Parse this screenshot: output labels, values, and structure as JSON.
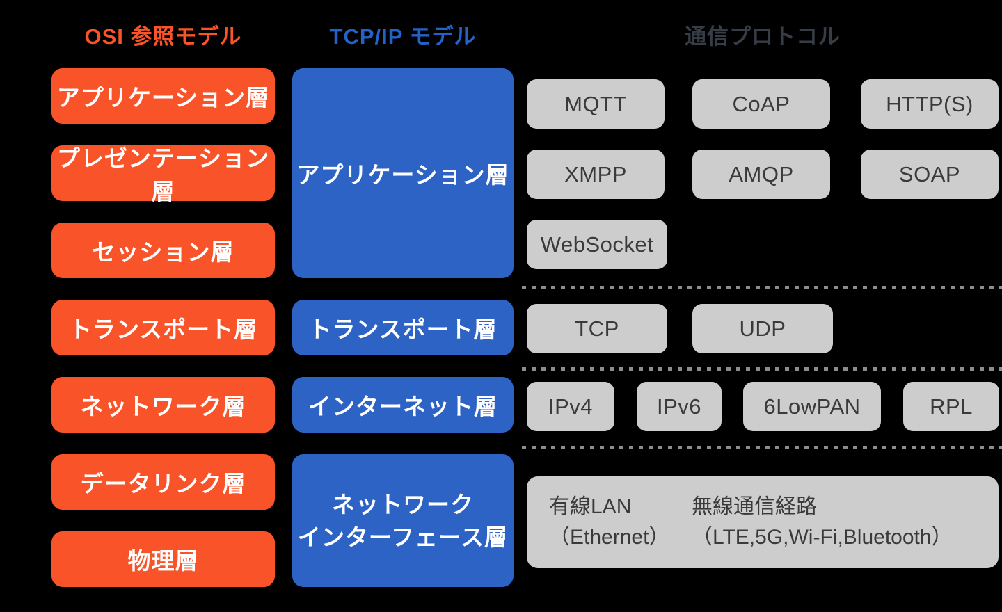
{
  "colors": {
    "background": "#000000",
    "osi_orange": "#f95429",
    "tcpip_blue": "#2d63c5",
    "tcpip_heading_blue": "#2363c9",
    "protocol_box_gray": "#cdcdcd",
    "protocol_text_gray": "#3a3a3a",
    "protocol_heading_gray": "#363d47",
    "dashed_divider_gray": "#8d8d8d",
    "box_text_white": "#ffffff"
  },
  "headers": {
    "osi": "OSI 参照モデル",
    "tcpip": "TCP/IP モデル",
    "protocols": "通信プロトコル"
  },
  "osi_layers": [
    "アプリケーション層",
    "プレゼンテーション層",
    "セッション層",
    "トランスポート層",
    "ネットワーク層",
    "データリンク層",
    "物理層"
  ],
  "tcpip_layers": {
    "application": "アプリケーション層",
    "transport": "トランスポート層",
    "internet": "インターネット層",
    "network_interface_line1": "ネットワーク",
    "network_interface_line2": "インターフェース層"
  },
  "protocols": {
    "application_row1": [
      "MQTT",
      "CoAP",
      "HTTP(S)"
    ],
    "application_row2": [
      "XMPP",
      "AMQP",
      "SOAP"
    ],
    "application_row3": [
      "WebSocket"
    ],
    "transport": [
      "TCP",
      "UDP"
    ],
    "internet": [
      "IPv4",
      "IPv6",
      "6LowPAN",
      "RPL"
    ],
    "network_interface": {
      "wired_line1": "有線LAN",
      "wired_line2": "（Ethernet）",
      "wireless_line1": "無線通信経路",
      "wireless_line2": "（LTE,5G,Wi-Fi,Bluetooth）"
    }
  }
}
